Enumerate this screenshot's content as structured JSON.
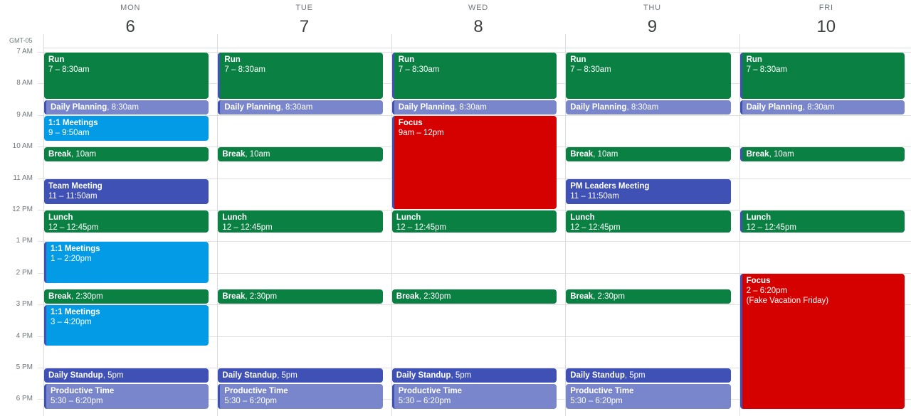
{
  "timezone": "GMT-05",
  "days": [
    {
      "dow": "MON",
      "num": "6"
    },
    {
      "dow": "TUE",
      "num": "7"
    },
    {
      "dow": "WED",
      "num": "8"
    },
    {
      "dow": "THU",
      "num": "9"
    },
    {
      "dow": "FRI",
      "num": "10"
    }
  ],
  "hours": [
    "7 AM",
    "8 AM",
    "9 AM",
    "10 AM",
    "11 AM",
    "12 PM",
    "1 PM",
    "2 PM",
    "3 PM",
    "4 PM",
    "5 PM",
    "6 PM"
  ],
  "colors": {
    "green": "#0b8043",
    "lavender": "#7986cb",
    "peacock": "#039be5",
    "tomato": "#d50000",
    "blueberry": "#3f51b5",
    "bar": "#3f51b5"
  },
  "events": [
    {
      "day": 0,
      "start": 7.0,
      "end": 8.5,
      "title": "Run",
      "time": "7 – 8:30am",
      "color": "green",
      "inline": false
    },
    {
      "day": 0,
      "start": 8.5,
      "end": 9.0,
      "title": "Daily Planning",
      "time": ", 8:30am",
      "color": "lavender",
      "inline": true,
      "bar": true
    },
    {
      "day": 0,
      "start": 9.0,
      "end": 9.8333,
      "title": "1:1 Meetings",
      "time": "9 – 9:50am",
      "color": "peacock",
      "inline": false
    },
    {
      "day": 0,
      "start": 10.0,
      "end": 10.5,
      "title": "Break",
      "time": ", 10am",
      "color": "green",
      "inline": true
    },
    {
      "day": 0,
      "start": 11.0,
      "end": 11.8333,
      "title": "Team Meeting",
      "time": "11 – 11:50am",
      "color": "blueberry",
      "inline": false
    },
    {
      "day": 0,
      "start": 12.0,
      "end": 12.75,
      "title": "Lunch",
      "time": "12 – 12:45pm",
      "color": "green",
      "inline": false
    },
    {
      "day": 0,
      "start": 13.0,
      "end": 14.3333,
      "title": "1:1 Meetings",
      "time": "1 – 2:20pm",
      "color": "peacock",
      "inline": false,
      "bar": true
    },
    {
      "day": 0,
      "start": 14.5,
      "end": 15.0,
      "title": "Break",
      "time": ", 2:30pm",
      "color": "green",
      "inline": true
    },
    {
      "day": 0,
      "start": 15.0,
      "end": 16.3333,
      "title": "1:1 Meetings",
      "time": "3 – 4:20pm",
      "color": "peacock",
      "inline": false,
      "bar": true
    },
    {
      "day": 0,
      "start": 17.0,
      "end": 17.5,
      "title": "Daily Standup",
      "time": ", 5pm",
      "color": "blueberry",
      "inline": true
    },
    {
      "day": 0,
      "start": 17.5,
      "end": 18.3333,
      "title": "Productive Time",
      "time": "5:30 – 6:20pm",
      "color": "lavender",
      "inline": false,
      "bar": true
    },
    {
      "day": 1,
      "start": 7.0,
      "end": 8.5,
      "title": "Run",
      "time": "7 – 8:30am",
      "color": "green",
      "inline": false,
      "bar": true
    },
    {
      "day": 1,
      "start": 8.5,
      "end": 9.0,
      "title": "Daily Planning",
      "time": ", 8:30am",
      "color": "lavender",
      "inline": true,
      "bar": true
    },
    {
      "day": 1,
      "start": 10.0,
      "end": 10.5,
      "title": "Break",
      "time": ", 10am",
      "color": "green",
      "inline": true
    },
    {
      "day": 1,
      "start": 12.0,
      "end": 12.75,
      "title": "Lunch",
      "time": "12 – 12:45pm",
      "color": "green",
      "inline": false
    },
    {
      "day": 1,
      "start": 14.5,
      "end": 15.0,
      "title": "Break",
      "time": ", 2:30pm",
      "color": "green",
      "inline": true
    },
    {
      "day": 1,
      "start": 17.0,
      "end": 17.5,
      "title": "Daily Standup",
      "time": ", 5pm",
      "color": "blueberry",
      "inline": true
    },
    {
      "day": 1,
      "start": 17.5,
      "end": 18.3333,
      "title": "Productive Time",
      "time": "5:30 – 6:20pm",
      "color": "lavender",
      "inline": false,
      "bar": true
    },
    {
      "day": 2,
      "start": 7.0,
      "end": 8.5,
      "title": "Run",
      "time": "7 – 8:30am",
      "color": "green",
      "inline": false,
      "bar": true
    },
    {
      "day": 2,
      "start": 8.5,
      "end": 9.0,
      "title": "Daily Planning",
      "time": ", 8:30am",
      "color": "lavender",
      "inline": true,
      "bar": true
    },
    {
      "day": 2,
      "start": 9.0,
      "end": 12.0,
      "title": "Focus",
      "time": "9am – 12pm",
      "color": "tomato",
      "inline": false,
      "bar": true
    },
    {
      "day": 2,
      "start": 12.0,
      "end": 12.75,
      "title": "Lunch",
      "time": "12 – 12:45pm",
      "color": "green",
      "inline": false
    },
    {
      "day": 2,
      "start": 14.5,
      "end": 15.0,
      "title": "Break",
      "time": ", 2:30pm",
      "color": "green",
      "inline": true
    },
    {
      "day": 2,
      "start": 17.0,
      "end": 17.5,
      "title": "Daily Standup",
      "time": ", 5pm",
      "color": "blueberry",
      "inline": true
    },
    {
      "day": 2,
      "start": 17.5,
      "end": 18.3333,
      "title": "Productive Time",
      "time": "5:30 – 6:20pm",
      "color": "lavender",
      "inline": false,
      "bar": true
    },
    {
      "day": 3,
      "start": 7.0,
      "end": 8.5,
      "title": "Run",
      "time": "7 – 8:30am",
      "color": "green",
      "inline": false
    },
    {
      "day": 3,
      "start": 8.5,
      "end": 9.0,
      "title": "Daily Planning",
      "time": ", 8:30am",
      "color": "lavender",
      "inline": true
    },
    {
      "day": 3,
      "start": 10.0,
      "end": 10.5,
      "title": "Break",
      "time": ", 10am",
      "color": "green",
      "inline": true
    },
    {
      "day": 3,
      "start": 11.0,
      "end": 11.8333,
      "title": "PM Leaders Meeting",
      "time": "11 – 11:50am",
      "color": "blueberry",
      "inline": false
    },
    {
      "day": 3,
      "start": 12.0,
      "end": 12.75,
      "title": "Lunch",
      "time": "12 – 12:45pm",
      "color": "green",
      "inline": false
    },
    {
      "day": 3,
      "start": 14.5,
      "end": 15.0,
      "title": "Break",
      "time": ", 2:30pm",
      "color": "green",
      "inline": true
    },
    {
      "day": 3,
      "start": 17.0,
      "end": 17.5,
      "title": "Daily Standup",
      "time": ", 5pm",
      "color": "blueberry",
      "inline": true
    },
    {
      "day": 3,
      "start": 17.5,
      "end": 18.3333,
      "title": "Productive Time",
      "time": "5:30 – 6:20pm",
      "color": "lavender",
      "inline": false
    },
    {
      "day": 4,
      "start": 7.0,
      "end": 8.5,
      "title": "Run",
      "time": "7 – 8:30am",
      "color": "green",
      "inline": false,
      "bar": true
    },
    {
      "day": 4,
      "start": 8.5,
      "end": 9.0,
      "title": "Daily Planning",
      "time": ", 8:30am",
      "color": "lavender",
      "inline": true,
      "bar": true
    },
    {
      "day": 4,
      "start": 10.0,
      "end": 10.5,
      "title": "Break",
      "time": ", 10am",
      "color": "green",
      "inline": true,
      "bar": true
    },
    {
      "day": 4,
      "start": 12.0,
      "end": 12.75,
      "title": "Lunch",
      "time": "12 – 12:45pm",
      "color": "green",
      "inline": false,
      "bar": true
    },
    {
      "day": 4,
      "start": 14.0,
      "end": 18.3333,
      "title": "Focus",
      "time": "2 – 6:20pm",
      "note": "(Fake Vacation Friday)",
      "color": "tomato",
      "inline": false,
      "bar": true
    }
  ]
}
